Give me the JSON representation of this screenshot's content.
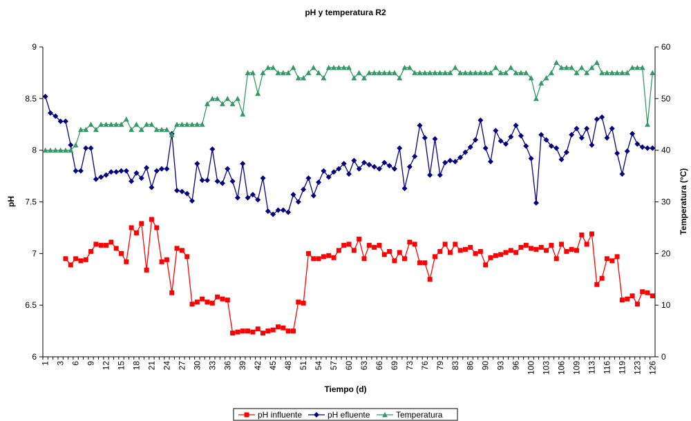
{
  "chart_data": {
    "type": "line",
    "title": "pH  y temperatura R2",
    "x_label": "Tiempo (d)",
    "y_label": "pH",
    "y2_label": "Temperatura (°C)",
    "categories": [
      "1",
      null,
      null,
      "3",
      null,
      null,
      "6",
      null,
      null,
      "9",
      null,
      null,
      "12",
      null,
      null,
      "15",
      null,
      null,
      "18",
      null,
      null,
      "21",
      null,
      null,
      "24",
      null,
      null,
      "27",
      null,
      null,
      "30",
      null,
      null,
      "33",
      null,
      null,
      "36",
      null,
      null,
      "39",
      null,
      null,
      "42",
      null,
      null,
      "45",
      null,
      null,
      "48",
      null,
      null,
      "51",
      null,
      null,
      "54",
      null,
      null,
      "57",
      null,
      null,
      "60",
      null,
      null,
      "63",
      null,
      null,
      "66",
      null,
      null,
      "69",
      null,
      null,
      "73",
      null,
      null,
      "76",
      null,
      null,
      "79",
      null,
      null,
      "83",
      null,
      null,
      "86",
      null,
      null,
      "90",
      null,
      null,
      "93",
      null,
      null,
      "96",
      null,
      null,
      "100",
      null,
      null,
      "103",
      null,
      null,
      "106",
      null,
      null,
      "109",
      null,
      null,
      "113",
      null,
      null,
      "116",
      null,
      null,
      "119",
      null,
      null,
      "123",
      null,
      null,
      "126"
    ],
    "ylim": [
      6,
      9
    ],
    "yticks": [
      6,
      6.5,
      7,
      7.5,
      8,
      8.5,
      9
    ],
    "y2lim": [
      0,
      60
    ],
    "y2ticks": [
      0,
      10,
      20,
      30,
      40,
      50,
      60
    ],
    "legend": "bottom",
    "series": [
      {
        "name": "pH influente",
        "color": "#ff0000",
        "marker": "square",
        "values": [
          null,
          null,
          null,
          null,
          6.95,
          6.89,
          6.95,
          6.93,
          6.94,
          7.02,
          7.09,
          7.08,
          7.08,
          7.11,
          7.05,
          7.0,
          6.92,
          7.25,
          7.2,
          7.29,
          6.84,
          7.33,
          7.25,
          6.92,
          6.94,
          6.62,
          7.05,
          7.03,
          6.97,
          6.51,
          6.53,
          6.56,
          6.53,
          6.52,
          6.58,
          6.56,
          6.55,
          6.23,
          6.24,
          6.25,
          6.25,
          6.24,
          6.27,
          6.23,
          6.25,
          6.26,
          6.29,
          6.28,
          6.25,
          6.25,
          6.53,
          6.52,
          7.0,
          6.95,
          6.95,
          6.97,
          6.98,
          6.96,
          7.03,
          7.08,
          7.09,
          7.03,
          7.14,
          6.95,
          7.08,
          7.06,
          7.08,
          6.99,
          7.02,
          6.93,
          7.01,
          6.95,
          7.11,
          7.09,
          6.91,
          6.91,
          6.75,
          6.97,
          7.02,
          7.09,
          7.01,
          7.09,
          7.03,
          7.04,
          7.06,
          7.0,
          7.02,
          6.89,
          6.96,
          6.98,
          6.99,
          7.01,
          7.03,
          7.01,
          7.06,
          7.08,
          7.05,
          7.04,
          7.06,
          7.03,
          7.08,
          6.95,
          7.09,
          7.02,
          7.04,
          7.03,
          7.18,
          7.09,
          7.19,
          6.7,
          6.76,
          6.95,
          6.93,
          6.97,
          6.55,
          6.56,
          6.59,
          6.51,
          6.63,
          6.62,
          6.59
        ]
      },
      {
        "name": "pH efluente",
        "color": "#000080",
        "marker": "diamond",
        "values": [
          8.52,
          8.36,
          8.33,
          8.28,
          8.28,
          8.05,
          7.8,
          7.8,
          8.02,
          8.02,
          7.72,
          7.74,
          7.76,
          7.79,
          7.79,
          7.8,
          7.8,
          7.7,
          7.78,
          7.73,
          7.83,
          7.64,
          7.8,
          7.82,
          7.82,
          8.16,
          7.61,
          7.6,
          7.58,
          7.51,
          7.87,
          7.71,
          7.71,
          8.01,
          7.7,
          7.68,
          7.82,
          7.7,
          7.54,
          7.87,
          7.54,
          7.57,
          7.52,
          7.73,
          7.41,
          7.38,
          7.42,
          7.42,
          7.4,
          7.57,
          7.5,
          7.62,
          7.73,
          7.56,
          7.69,
          7.8,
          7.74,
          7.79,
          7.82,
          7.87,
          7.77,
          7.9,
          7.82,
          7.88,
          7.86,
          7.84,
          7.82,
          7.88,
          7.85,
          7.82,
          8.02,
          7.63,
          7.84,
          7.94,
          8.24,
          8.12,
          7.76,
          8.11,
          7.76,
          7.88,
          7.9,
          7.89,
          7.93,
          7.98,
          8.03,
          8.1,
          8.29,
          8.02,
          7.89,
          8.19,
          8.09,
          8.06,
          8.13,
          8.24,
          8.14,
          8.04,
          7.92,
          7.49,
          8.15,
          8.1,
          8.04,
          8.02,
          7.91,
          7.98,
          8.15,
          8.21,
          8.12,
          8.21,
          8.05,
          8.3,
          8.32,
          8.12,
          8.21,
          7.97,
          7.77,
          7.99,
          8.16,
          8.06,
          8.03,
          8.02,
          8.02
        ]
      },
      {
        "name": "Temperatura",
        "color": "#339966",
        "marker": "triangle",
        "axis": "y2",
        "values": [
          40,
          40,
          40,
          40,
          40,
          40,
          41,
          44,
          44,
          45,
          44,
          45,
          45,
          45,
          45,
          45,
          46,
          44,
          45,
          44,
          45,
          45,
          44,
          44,
          44,
          43,
          45,
          45,
          45,
          45,
          45,
          45,
          49,
          50,
          50,
          49,
          50,
          49,
          50,
          47,
          55,
          55,
          51,
          55,
          56,
          56,
          55,
          55,
          55,
          56,
          54,
          54,
          55,
          56,
          55,
          54,
          56,
          56,
          56,
          56,
          56,
          54,
          55,
          54,
          55,
          55,
          55,
          55,
          55,
          55,
          54,
          56,
          56,
          55,
          55,
          55,
          55,
          55,
          55,
          55,
          55,
          56,
          55,
          55,
          55,
          55,
          55,
          55,
          55,
          56,
          55,
          55,
          56,
          55,
          55,
          55,
          54,
          50,
          53,
          54,
          55,
          57,
          56,
          56,
          56,
          55,
          56,
          55,
          56,
          57,
          55,
          55,
          55,
          55,
          55,
          55,
          56,
          56,
          56,
          45,
          55
        ]
      }
    ]
  }
}
